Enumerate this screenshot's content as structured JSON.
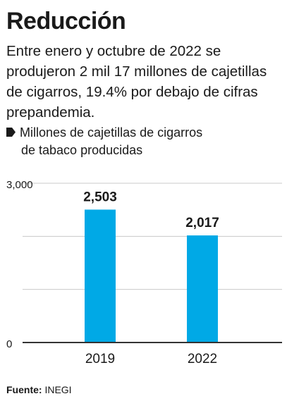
{
  "header": {
    "title": "Reducción",
    "subtitle": "Entre enero y octubre de 2022 se produjeron 2 mil 17 millones de cajetillas de cigarros, 19.4% por debajo de cifras prepandemia."
  },
  "legend": {
    "line1": "Millones de cajetillas de cigarros",
    "line2": "de tabaco producidas",
    "marker_icon": "tag-marker-icon"
  },
  "source": {
    "label": "Fuente:",
    "value": "INEGI"
  },
  "colors": {
    "bar": "#00a9e6",
    "text": "#1a1a1a",
    "grid": "#c8c8c8",
    "axis": "#333333"
  },
  "chart_data": {
    "type": "bar",
    "categories": [
      "2019",
      "2022"
    ],
    "values": [
      2503,
      2017
    ],
    "value_labels": [
      "2,503",
      "2,017"
    ],
    "ylim": [
      0,
      3000
    ],
    "y_ticks": [
      0,
      1000,
      2000,
      3000
    ],
    "y_tick_labels": [
      "0",
      "",
      "",
      "3,000"
    ],
    "grid": true
  }
}
